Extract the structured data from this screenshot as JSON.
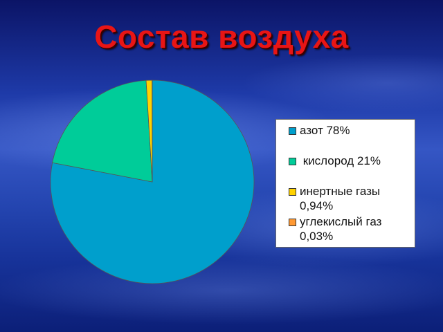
{
  "chart_data": {
    "type": "pie",
    "title": "Состав воздуха",
    "categories": [
      "азот 78%",
      "кислород 21%",
      "инертные газы 0,94%",
      "углекислый газ 0,03%"
    ],
    "values": [
      78,
      21,
      0.94,
      0.03
    ],
    "colors": [
      "#009fcc",
      "#00cc99",
      "#ffd200",
      "#ff9933"
    ],
    "legend_placement": "right"
  },
  "legend": {
    "items": [
      {
        "label": "азот 78%",
        "color": "#009fcc"
      },
      {
        "label": " кислород 21%",
        "color": "#00cc99"
      },
      {
        "label": "инертные газы\n0,94%",
        "color": "#ffd200"
      },
      {
        "label": "углекислый газ\n0,03%",
        "color": "#ff9933"
      }
    ]
  }
}
